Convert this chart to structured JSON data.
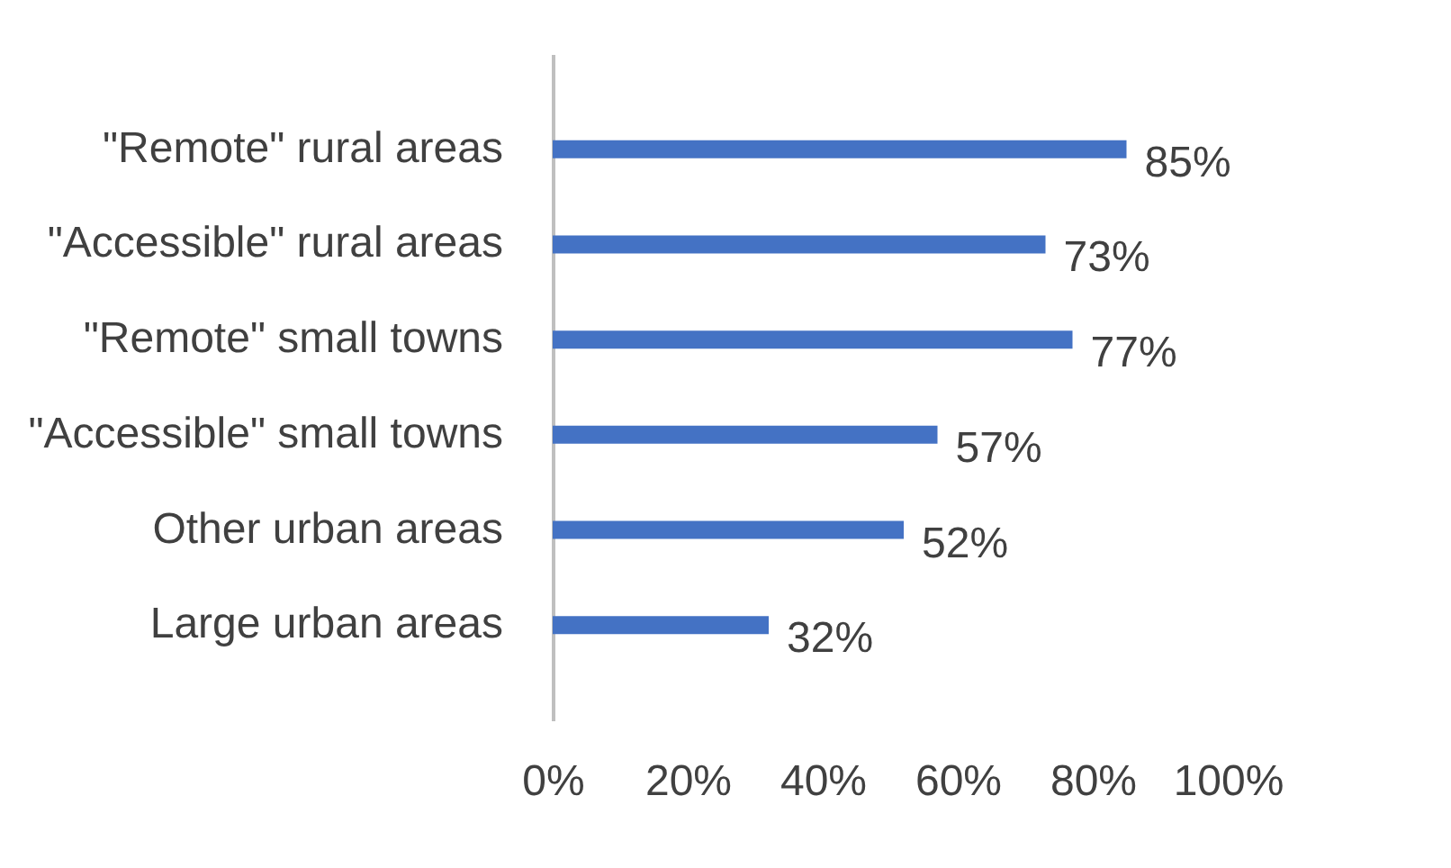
{
  "chart_data": {
    "type": "bar",
    "orientation": "horizontal",
    "categories": [
      "\"Remote\" rural areas",
      "\"Accessible\" rural areas",
      "\"Remote\" small towns",
      "\"Accessible\" small towns",
      "Other urban areas",
      "Large urban areas"
    ],
    "values": [
      85,
      73,
      77,
      57,
      52,
      32
    ],
    "value_labels": [
      "85%",
      "73%",
      "77%",
      "57%",
      "52%",
      "32%"
    ],
    "color": "#4472c4",
    "xlim": [
      0,
      100
    ],
    "xticks": [
      {
        "value": 0,
        "label": "0%"
      },
      {
        "value": 20,
        "label": "20%"
      },
      {
        "value": 40,
        "label": "40%"
      },
      {
        "value": 60,
        "label": "60%"
      },
      {
        "value": 80,
        "label": "80%"
      },
      {
        "value": 100,
        "label": "100%"
      }
    ],
    "grid": false
  }
}
